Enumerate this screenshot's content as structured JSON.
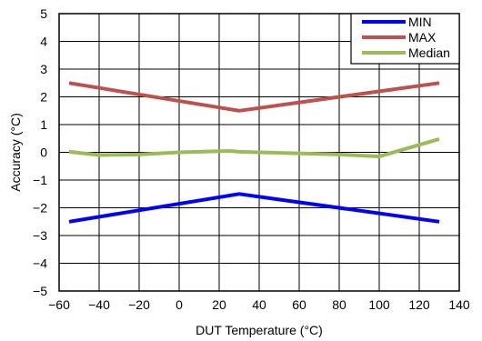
{
  "chart_data": {
    "type": "line",
    "title": "",
    "xlabel": "DUT Temperature (°C)",
    "ylabel": "Accuracy (°C)",
    "xlim": [
      -60,
      140
    ],
    "ylim": [
      -5,
      5
    ],
    "xticks": [
      -60,
      -40,
      -20,
      0,
      20,
      40,
      60,
      80,
      100,
      120,
      140
    ],
    "yticks": [
      -5,
      -4,
      -3,
      -2,
      -1,
      0,
      1,
      2,
      3,
      4,
      5
    ],
    "xtick_labels": [
      "−60",
      "−40",
      "−20",
      "0",
      "20",
      "40",
      "60",
      "80",
      "100",
      "120",
      "140"
    ],
    "ytick_labels": [
      "−5",
      "−4",
      "−3",
      "−2",
      "−1",
      "0",
      "1",
      "2",
      "3",
      "4",
      "5"
    ],
    "grid": true,
    "legend_position": "top-right",
    "series": [
      {
        "name": "MIN",
        "color": "#0000FF",
        "x": [
          -55,
          30,
          130
        ],
        "y": [
          -2.5,
          -1.5,
          -2.5
        ]
      },
      {
        "name": "MAX",
        "color": "#C0504D",
        "x": [
          -55,
          30,
          130
        ],
        "y": [
          2.5,
          1.5,
          2.5
        ]
      },
      {
        "name": "Median",
        "color": "#9BBB59",
        "x": [
          -55,
          -40,
          -20,
          0,
          25,
          30,
          80,
          100,
          130
        ],
        "y": [
          0.02,
          -0.1,
          -0.08,
          0.0,
          0.05,
          0.02,
          -0.08,
          -0.15,
          0.48
        ]
      }
    ]
  }
}
